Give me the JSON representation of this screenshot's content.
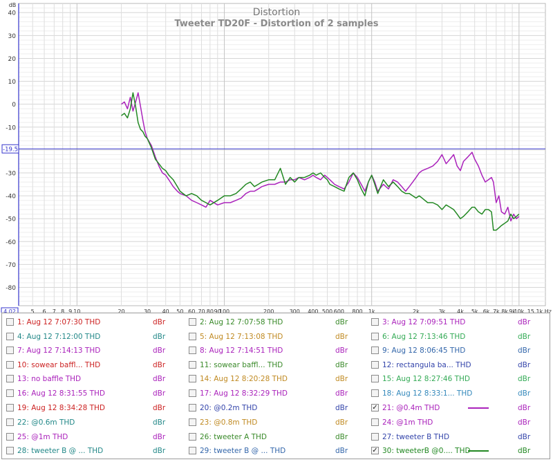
{
  "chart_data": {
    "type": "line",
    "title": "Distortion",
    "subtitle": "Tweeter TD20F - Distortion of 2 samples",
    "ylabel": "dB",
    "xunit": "Hz",
    "xscale": "log",
    "xlim": [
      4.02,
      15100
    ],
    "ylim": [
      -88,
      44
    ],
    "grid": true,
    "yticks": [
      40,
      30,
      20,
      10,
      0,
      -10,
      -20,
      -30,
      -40,
      -50,
      -60,
      -70,
      -80
    ],
    "ytick_labels": [
      "40",
      "30",
      "20",
      "10",
      "0",
      "-10",
      "-20",
      "-30",
      "-40",
      "-50",
      "-60",
      "-70",
      "-80"
    ],
    "xticks": [
      {
        "v": 5,
        "label": "5"
      },
      {
        "v": 6,
        "label": "6"
      },
      {
        "v": 7,
        "label": "7"
      },
      {
        "v": 8,
        "label": "8"
      },
      {
        "v": 9,
        "label": "9"
      },
      {
        "v": 10,
        "label": "10"
      },
      {
        "v": 20,
        "label": "20"
      },
      {
        "v": 30,
        "label": "30"
      },
      {
        "v": 40,
        "label": "40"
      },
      {
        "v": 50,
        "label": "50"
      },
      {
        "v": 60,
        "label": "60"
      },
      {
        "v": 70,
        "label": "70"
      },
      {
        "v": 80,
        "label": "80"
      },
      {
        "v": 90,
        "label": "90"
      },
      {
        "v": 100,
        "label": "100"
      },
      {
        "v": 200,
        "label": "200"
      },
      {
        "v": 300,
        "label": "300"
      },
      {
        "v": 400,
        "label": "400"
      },
      {
        "v": 500,
        "label": "500"
      },
      {
        "v": 600,
        "label": "600"
      },
      {
        "v": 800,
        "label": "800"
      },
      {
        "v": 1000,
        "label": "1k"
      },
      {
        "v": 2000,
        "label": "2k"
      },
      {
        "v": 3000,
        "label": "3k"
      },
      {
        "v": 4000,
        "label": "4k"
      },
      {
        "v": 5000,
        "label": "5k"
      },
      {
        "v": 6000,
        "label": "6k"
      },
      {
        "v": 7000,
        "label": "7k"
      },
      {
        "v": 8000,
        "label": "8k"
      },
      {
        "v": 9000,
        "label": "9k"
      },
      {
        "v": 10000,
        "label": "10k"
      }
    ],
    "xaxis_start_label": "4.02",
    "xaxis_end_label": "15.1k Hz",
    "reference_line": {
      "y": -19.5,
      "label": "-19.5",
      "color": "#3333cc"
    },
    "series": [
      {
        "name": "21: @0.4m THD",
        "color": "#aa22bb",
        "points": [
          [
            20,
            0
          ],
          [
            21,
            1
          ],
          [
            22,
            -2
          ],
          [
            23,
            3
          ],
          [
            24,
            -3
          ],
          [
            25,
            1
          ],
          [
            26,
            5
          ],
          [
            27,
            -1
          ],
          [
            28,
            -7
          ],
          [
            29,
            -12
          ],
          [
            30,
            -15
          ],
          [
            32,
            -18
          ],
          [
            34,
            -23
          ],
          [
            36,
            -27
          ],
          [
            38,
            -30
          ],
          [
            40,
            -31
          ],
          [
            42,
            -33
          ],
          [
            45,
            -36
          ],
          [
            48,
            -38
          ],
          [
            50,
            -39
          ],
          [
            55,
            -40
          ],
          [
            60,
            -42
          ],
          [
            65,
            -43
          ],
          [
            70,
            -44
          ],
          [
            75,
            -45
          ],
          [
            80,
            -42
          ],
          [
            90,
            -44
          ],
          [
            100,
            -43
          ],
          [
            110,
            -43
          ],
          [
            120,
            -42
          ],
          [
            130,
            -41
          ],
          [
            140,
            -39
          ],
          [
            150,
            -38
          ],
          [
            160,
            -38
          ],
          [
            170,
            -37
          ],
          [
            180,
            -36
          ],
          [
            200,
            -35
          ],
          [
            220,
            -35
          ],
          [
            240,
            -34
          ],
          [
            260,
            -34
          ],
          [
            280,
            -33
          ],
          [
            300,
            -33
          ],
          [
            320,
            -32
          ],
          [
            350,
            -33
          ],
          [
            380,
            -32
          ],
          [
            400,
            -31
          ],
          [
            420,
            -32
          ],
          [
            450,
            -33
          ],
          [
            480,
            -31
          ],
          [
            500,
            -32
          ],
          [
            520,
            -33
          ],
          [
            560,
            -35
          ],
          [
            600,
            -36
          ],
          [
            650,
            -37
          ],
          [
            700,
            -34
          ],
          [
            750,
            -30
          ],
          [
            800,
            -32
          ],
          [
            850,
            -35
          ],
          [
            900,
            -38
          ],
          [
            950,
            -34
          ],
          [
            1000,
            -31
          ],
          [
            1050,
            -34
          ],
          [
            1100,
            -38
          ],
          [
            1200,
            -35
          ],
          [
            1300,
            -37
          ],
          [
            1400,
            -33
          ],
          [
            1500,
            -34
          ],
          [
            1600,
            -36
          ],
          [
            1700,
            -38
          ],
          [
            1800,
            -36
          ],
          [
            1900,
            -34
          ],
          [
            2000,
            -32
          ],
          [
            2100,
            -30
          ],
          [
            2200,
            -29
          ],
          [
            2400,
            -28
          ],
          [
            2600,
            -27
          ],
          [
            2800,
            -25
          ],
          [
            3000,
            -22
          ],
          [
            3200,
            -26
          ],
          [
            3400,
            -24
          ],
          [
            3600,
            -22
          ],
          [
            3800,
            -27
          ],
          [
            4000,
            -29
          ],
          [
            4200,
            -25
          ],
          [
            4500,
            -23
          ],
          [
            4800,
            -21
          ],
          [
            5000,
            -24
          ],
          [
            5300,
            -27
          ],
          [
            5600,
            -31
          ],
          [
            5900,
            -34
          ],
          [
            6200,
            -33
          ],
          [
            6500,
            -32
          ],
          [
            6700,
            -34
          ],
          [
            7000,
            -43
          ],
          [
            7300,
            -40
          ],
          [
            7600,
            -47
          ],
          [
            8000,
            -48
          ],
          [
            8400,
            -45
          ],
          [
            8800,
            -51
          ],
          [
            9200,
            -48
          ],
          [
            9600,
            -50
          ],
          [
            10000,
            -49
          ]
        ]
      },
      {
        "name": "30: tweeterB @0.... THD",
        "color": "#228822",
        "points": [
          [
            20,
            -5
          ],
          [
            21,
            -4
          ],
          [
            22,
            -6
          ],
          [
            23,
            -2
          ],
          [
            24,
            5
          ],
          [
            25,
            -1
          ],
          [
            26,
            -8
          ],
          [
            27,
            -11
          ],
          [
            28,
            -12
          ],
          [
            29,
            -14
          ],
          [
            30,
            -15
          ],
          [
            32,
            -19
          ],
          [
            34,
            -24
          ],
          [
            36,
            -26
          ],
          [
            38,
            -28
          ],
          [
            40,
            -29
          ],
          [
            42,
            -31
          ],
          [
            45,
            -33
          ],
          [
            48,
            -36
          ],
          [
            50,
            -38
          ],
          [
            55,
            -40
          ],
          [
            60,
            -39
          ],
          [
            65,
            -40
          ],
          [
            70,
            -42
          ],
          [
            75,
            -43
          ],
          [
            80,
            -44
          ],
          [
            90,
            -42
          ],
          [
            100,
            -40
          ],
          [
            110,
            -40
          ],
          [
            120,
            -39
          ],
          [
            130,
            -37
          ],
          [
            140,
            -35
          ],
          [
            150,
            -34
          ],
          [
            160,
            -36
          ],
          [
            170,
            -35
          ],
          [
            180,
            -34
          ],
          [
            200,
            -33
          ],
          [
            220,
            -33
          ],
          [
            240,
            -28
          ],
          [
            260,
            -35
          ],
          [
            280,
            -32
          ],
          [
            300,
            -34
          ],
          [
            320,
            -32
          ],
          [
            350,
            -32
          ],
          [
            380,
            -31
          ],
          [
            400,
            -30
          ],
          [
            420,
            -31
          ],
          [
            450,
            -30
          ],
          [
            480,
            -32
          ],
          [
            500,
            -33
          ],
          [
            520,
            -35
          ],
          [
            560,
            -36
          ],
          [
            600,
            -37
          ],
          [
            650,
            -38
          ],
          [
            700,
            -32
          ],
          [
            750,
            -30
          ],
          [
            800,
            -33
          ],
          [
            850,
            -37
          ],
          [
            900,
            -40
          ],
          [
            950,
            -34
          ],
          [
            1000,
            -31
          ],
          [
            1050,
            -35
          ],
          [
            1100,
            -39
          ],
          [
            1200,
            -33
          ],
          [
            1300,
            -36
          ],
          [
            1400,
            -34
          ],
          [
            1500,
            -36
          ],
          [
            1600,
            -38
          ],
          [
            1700,
            -39
          ],
          [
            1800,
            -39
          ],
          [
            1900,
            -40
          ],
          [
            2000,
            -41
          ],
          [
            2100,
            -40
          ],
          [
            2200,
            -41
          ],
          [
            2400,
            -43
          ],
          [
            2600,
            -43
          ],
          [
            2800,
            -44
          ],
          [
            3000,
            -46
          ],
          [
            3200,
            -44
          ],
          [
            3400,
            -45
          ],
          [
            3600,
            -46
          ],
          [
            3800,
            -48
          ],
          [
            4000,
            -50
          ],
          [
            4200,
            -49
          ],
          [
            4500,
            -47
          ],
          [
            4800,
            -45
          ],
          [
            5000,
            -45
          ],
          [
            5300,
            -47
          ],
          [
            5600,
            -48
          ],
          [
            5900,
            -46
          ],
          [
            6200,
            -46
          ],
          [
            6500,
            -47
          ],
          [
            6700,
            -55
          ],
          [
            7000,
            -55
          ],
          [
            7300,
            -54
          ],
          [
            7600,
            -53
          ],
          [
            8000,
            -52
          ],
          [
            8400,
            -51
          ],
          [
            8800,
            -48
          ],
          [
            9200,
            -50
          ],
          [
            9600,
            -49
          ],
          [
            10000,
            -48
          ]
        ]
      }
    ]
  },
  "legend": [
    {
      "label": "1: Aug 12 7:07:30 THD",
      "unit": "dBr",
      "color": "#cc2222",
      "checked": false
    },
    {
      "label": "2: Aug 12 7:07:58 THD",
      "unit": "dBr",
      "color": "#3a8a2a",
      "checked": false
    },
    {
      "label": "3: Aug 12 7:09:51 THD",
      "unit": "dBr",
      "color": "#aa22bb",
      "checked": false
    },
    {
      "label": "4: Aug 12 7:12:00 THD",
      "unit": "dBr",
      "color": "#228888",
      "checked": false
    },
    {
      "label": "5: Aug 12 7:13:08 THD",
      "unit": "dBr",
      "color": "#c08a22",
      "checked": false
    },
    {
      "label": "6: Aug 12 7:13:46 THD",
      "unit": "dBr",
      "color": "#33aa55",
      "checked": false
    },
    {
      "label": "7: Aug 12 7:14:13 THD",
      "unit": "dBr",
      "color": "#aa22bb",
      "checked": false
    },
    {
      "label": "8: Aug 12 7:14:51 THD",
      "unit": "dBr",
      "color": "#aa22bb",
      "checked": false
    },
    {
      "label": "9: Aug 12 8:06:45 THD",
      "unit": "dBr",
      "color": "#3366aa",
      "checked": false
    },
    {
      "label": "10: sowear baffl... THD",
      "unit": "dBr",
      "color": "#cc2222",
      "checked": false
    },
    {
      "label": "11: sowear baffl... THD",
      "unit": "dBr",
      "color": "#3a8a2a",
      "checked": false
    },
    {
      "label": "12: rectangula ba... THD",
      "unit": "dBr",
      "color": "#3344aa",
      "checked": false
    },
    {
      "label": "13: no baffle THD",
      "unit": "dBr",
      "color": "#aa22bb",
      "checked": false
    },
    {
      "label": "14: Aug 12 8:20:28 THD",
      "unit": "dBr",
      "color": "#c08a22",
      "checked": false
    },
    {
      "label": "15: Aug 12 8:27:46 THD",
      "unit": "dBr",
      "color": "#33aa55",
      "checked": false
    },
    {
      "label": "16: Aug 12 8:31:55 THD",
      "unit": "dBr",
      "color": "#aa22bb",
      "checked": false
    },
    {
      "label": "17: Aug 12 8:32:29 THD",
      "unit": "dBr",
      "color": "#aa22bb",
      "checked": false
    },
    {
      "label": "18: Aug 12 8:33:1... THD",
      "unit": "dBr",
      "color": "#3388bb",
      "checked": false
    },
    {
      "label": "19: Aug 12 8:34:28 THD",
      "unit": "dBr",
      "color": "#cc2222",
      "checked": false
    },
    {
      "label": "20: @0.2m THD",
      "unit": "dBr",
      "color": "#3344aa",
      "checked": false
    },
    {
      "label": "21: @0.4m THD",
      "unit": "dBr",
      "color": "#aa22bb",
      "checked": true
    },
    {
      "label": "22: @0.6m THD",
      "unit": "dBr",
      "color": "#228888",
      "checked": false
    },
    {
      "label": "23: @0.8m THD",
      "unit": "dBr",
      "color": "#c08a22",
      "checked": false
    },
    {
      "label": "24: @1m THD",
      "unit": "dBr",
      "color": "#aa22bb",
      "checked": false
    },
    {
      "label": "25: @1m THD",
      "unit": "dBr",
      "color": "#aa22bb",
      "checked": false
    },
    {
      "label": "26: tweeter A THD",
      "unit": "dBr",
      "color": "#3a8a2a",
      "checked": false
    },
    {
      "label": "27: tweeter B THD",
      "unit": "dBr",
      "color": "#3344aa",
      "checked": false
    },
    {
      "label": "28: tweeter B @ ... THD",
      "unit": "dBr",
      "color": "#228888",
      "checked": false
    },
    {
      "label": "29: tweeter B @ ... THD",
      "unit": "dBr",
      "color": "#3366aa",
      "checked": false
    },
    {
      "label": "30: tweeterB @0.... THD",
      "unit": "dBr",
      "color": "#228822",
      "checked": true
    }
  ]
}
